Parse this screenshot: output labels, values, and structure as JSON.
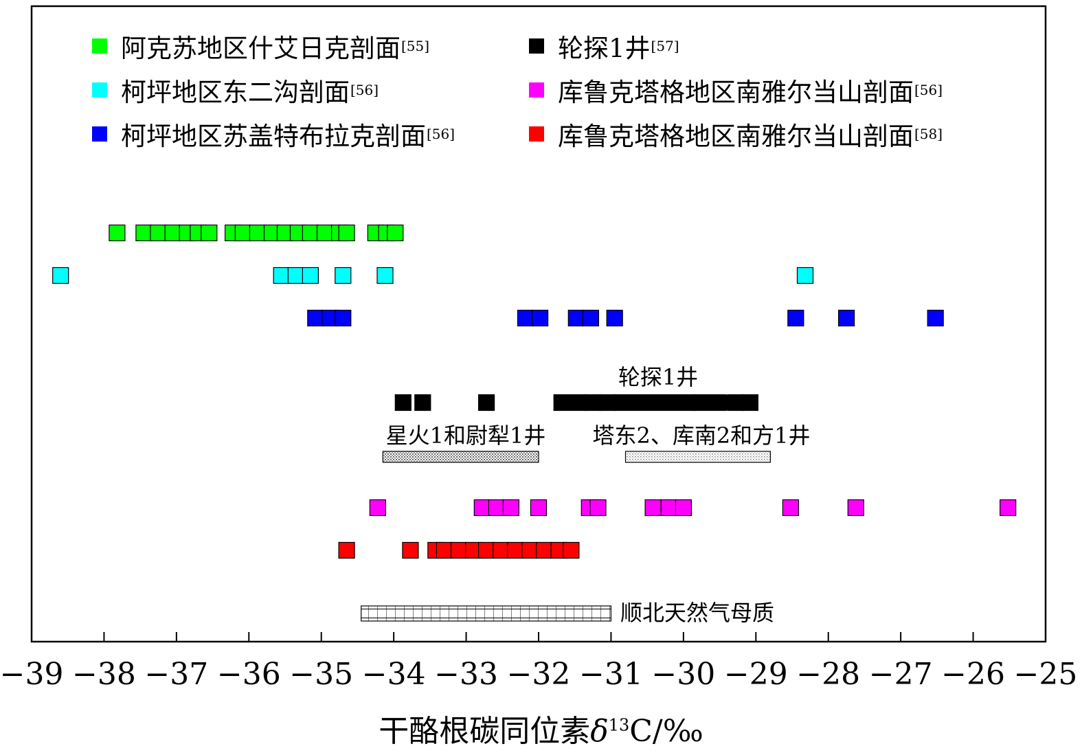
{
  "legend": [
    {
      "label": "阿克苏地区什艾日克剖面",
      "ref": "[55]",
      "color": "#00ff00"
    },
    {
      "label": "轮探1井",
      "ref": "[57]",
      "color": "#000000"
    },
    {
      "label": "柯坪地区东二沟剖面",
      "ref": "[56]",
      "color": "#00ffff"
    },
    {
      "label": "库鲁克塔格地区南雅尔当山剖面",
      "ref": "[56]",
      "color": "#ff00ff"
    },
    {
      "label": "柯坪地区苏盖特布拉克剖面",
      "ref": "[56]",
      "color": "#0000ff"
    },
    {
      "label": "库鲁克塔格地区南雅尔当山剖面",
      "ref": "[58]",
      "color": "#ff0000"
    }
  ],
  "xaxis": {
    "title_prefix": "干酪根碳同位素",
    "title_delta": "δ",
    "title_sup": "13",
    "title_suffix": "C/‰"
  },
  "chart_data": {
    "type": "scatter",
    "xlim": [
      -39,
      -25
    ],
    "xticks": [
      -39,
      -38,
      -37,
      -36,
      -35,
      -34,
      -33,
      -32,
      -31,
      -30,
      -29,
      -28,
      -27,
      -26,
      -25
    ],
    "xtick_labels": [
      "−39",
      "−38",
      "−37",
      "−36",
      "−35",
      "−34",
      "−33",
      "−32",
      "−31",
      "−30",
      "−29",
      "−28",
      "−27",
      "−26",
      "−25"
    ],
    "series": [
      {
        "name": "阿克苏地区什艾日克剖面[55]",
        "color": "#00ff00",
        "x": [
          -37.82,
          -37.45,
          -37.25,
          -37.05,
          -36.85,
          -36.7,
          -36.55,
          -36.22,
          -36.08,
          -35.88,
          -35.68,
          -35.5,
          -35.32,
          -35.15,
          -34.95,
          -34.75,
          -34.65,
          -34.25,
          -34.1,
          -33.98
        ]
      },
      {
        "name": "柯坪地区东二沟剖面[56]",
        "color": "#00ffff",
        "x": [
          -38.6,
          -35.55,
          -35.35,
          -35.15,
          -34.7,
          -34.12,
          -28.32
        ]
      },
      {
        "name": "柯坪地区苏盖特布拉克剖面[56]",
        "color": "#0000ff",
        "x": [
          -35.08,
          -34.88,
          -34.7,
          -32.18,
          -31.98,
          -31.48,
          -31.28,
          -30.95,
          -28.45,
          -27.75,
          -26.52
        ]
      },
      {
        "name": "轮探1井[57]",
        "color": "#000000",
        "x": [
          -33.87,
          -33.6,
          -32.72,
          -31.68,
          -31.45,
          -31.25,
          -31.05,
          -30.85,
          -30.62,
          -30.4,
          -30.18,
          -29.95,
          -29.75,
          -29.52,
          -29.28,
          -29.08
        ]
      },
      {
        "name": "库鲁克塔格地区南雅尔当山剖面[56]",
        "color": "#ff00ff",
        "x": [
          -34.22,
          -32.78,
          -32.58,
          -32.38,
          -32.0,
          -31.3,
          -31.18,
          -30.42,
          -30.2,
          -30.0,
          -28.52,
          -27.62,
          -25.52
        ]
      },
      {
        "name": "库鲁克塔格地区南雅尔当山剖面[58]",
        "color": "#ff0000",
        "x": [
          -34.65,
          -33.77,
          -33.42,
          -33.3,
          -33.1,
          -32.9,
          -32.72,
          -32.52,
          -32.32,
          -32.12,
          -31.92,
          -31.72,
          -31.55
        ]
      }
    ],
    "ranges": [
      {
        "label": "轮探1井",
        "from": -31.7,
        "to": -29.1,
        "style": "solid"
      },
      {
        "label": "星火1和尉犁1井",
        "from": -34.15,
        "to": -32.0,
        "style": "dense-dots"
      },
      {
        "label": "塔东2、库南2和方1井",
        "from": -30.8,
        "to": -28.8,
        "style": "sparse-dots"
      },
      {
        "label": "顺北天然气母质",
        "from": -34.45,
        "to": -31.0,
        "style": "grid"
      }
    ]
  }
}
